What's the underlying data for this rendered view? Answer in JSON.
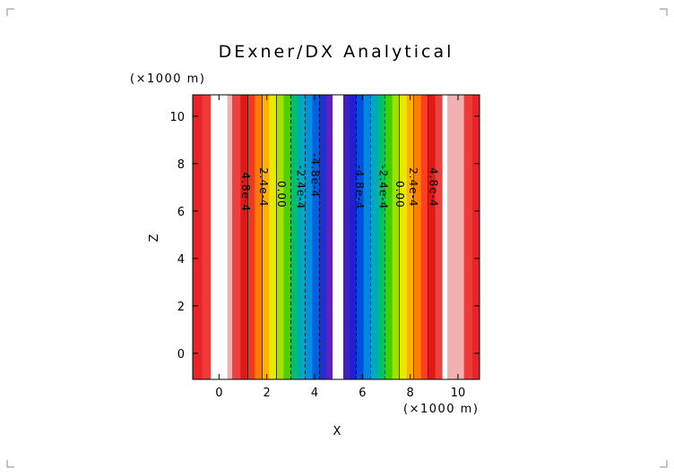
{
  "chart_data": {
    "type": "heatmap",
    "title": "DExner/DX Analytical",
    "xlabel": "X",
    "ylabel": "Z",
    "x_unit_label": "(×1000 m)",
    "y_unit_label": "(×1000 m)",
    "xlim": [
      -1.1,
      10.9
    ],
    "ylim": [
      -1.1,
      10.9
    ],
    "x_ticks": [
      0,
      2,
      4,
      6,
      8,
      10
    ],
    "y_ticks": [
      0,
      2,
      4,
      6,
      8,
      10
    ],
    "x_tick_labels": [
      "0",
      "2",
      "4",
      "6",
      "8",
      "10"
    ],
    "y_tick_labels": [
      "0",
      "2",
      "4",
      "6",
      "8",
      "10"
    ],
    "grid": false,
    "column_edges": [
      -1.1,
      -0.7,
      -0.35,
      0.35,
      0.55,
      0.9,
      1.2,
      1.5,
      1.8,
      2.1,
      2.4,
      2.7,
      3.0,
      3.3,
      3.6,
      3.9,
      4.2,
      4.5,
      4.75,
      5.0,
      5.2,
      5.45,
      5.75,
      6.05,
      6.35,
      6.65,
      6.95,
      7.25,
      7.55,
      7.85,
      8.15,
      8.45,
      8.75,
      9.05,
      9.35,
      9.55,
      10.25,
      10.6,
      10.9
    ],
    "column_colors": [
      "#e8242a",
      "#ef3a3a",
      "#ffffff",
      "#f2b0b0",
      "#ee4040",
      "#e01818",
      "#f03a20",
      "#ff7a00",
      "#ffb000",
      "#e8e800",
      "#a8e000",
      "#50d000",
      "#00c070",
      "#00a8c0",
      "#0090e0",
      "#0060e0",
      "#2030d0",
      "#6020c0",
      "#ffffff",
      "#ffffff",
      "#4020c0",
      "#2020d0",
      "#0050e0",
      "#0088e0",
      "#00a8c0",
      "#00c070",
      "#40d000",
      "#a0e000",
      "#e8e800",
      "#ffb000",
      "#ff8000",
      "#ff4020",
      "#e01818",
      "#ee4040",
      "#ffffff",
      "#f2b0b0",
      "#ef3a3a",
      "#e8242a"
    ],
    "contour_lines": [
      {
        "x": 1.2,
        "style": "solid"
      },
      {
        "x": 1.8,
        "style": "solid"
      },
      {
        "x": 2.4,
        "style": "solid"
      },
      {
        "x": 3.0,
        "style": "dashed"
      },
      {
        "x": 3.6,
        "style": "dashed"
      },
      {
        "x": 4.2,
        "style": "dashed"
      },
      {
        "x": 5.75,
        "style": "dashed"
      },
      {
        "x": 6.35,
        "style": "dashed"
      },
      {
        "x": 6.95,
        "style": "dashed"
      },
      {
        "x": 7.55,
        "style": "solid"
      },
      {
        "x": 8.15,
        "style": "solid"
      },
      {
        "x": 8.75,
        "style": "solid"
      }
    ],
    "contour_labels": [
      {
        "text": "4.8e-4",
        "x": 1.1,
        "y": 6.8,
        "rotation": 90
      },
      {
        "text": "2.4e-4",
        "x": 1.85,
        "y": 7.0,
        "rotation": 90
      },
      {
        "text": "0.00",
        "x": 2.6,
        "y": 6.7,
        "rotation": 90
      },
      {
        "text": "-2.4e-4",
        "x": 3.4,
        "y": 7.0,
        "rotation": 90
      },
      {
        "text": "-4.8e-4",
        "x": 4.0,
        "y": 7.5,
        "rotation": 90
      },
      {
        "text": "-4.8e-4",
        "x": 5.85,
        "y": 7.0,
        "rotation": 90
      },
      {
        "text": "-2.4e-4",
        "x": 6.85,
        "y": 7.0,
        "rotation": 90
      },
      {
        "text": "0.00",
        "x": 7.55,
        "y": 6.7,
        "rotation": 90
      },
      {
        "text": "2.4e-4",
        "x": 8.1,
        "y": 7.0,
        "rotation": 90
      },
      {
        "text": "4.8e-4",
        "x": 8.95,
        "y": 7.0,
        "rotation": 90
      }
    ]
  }
}
